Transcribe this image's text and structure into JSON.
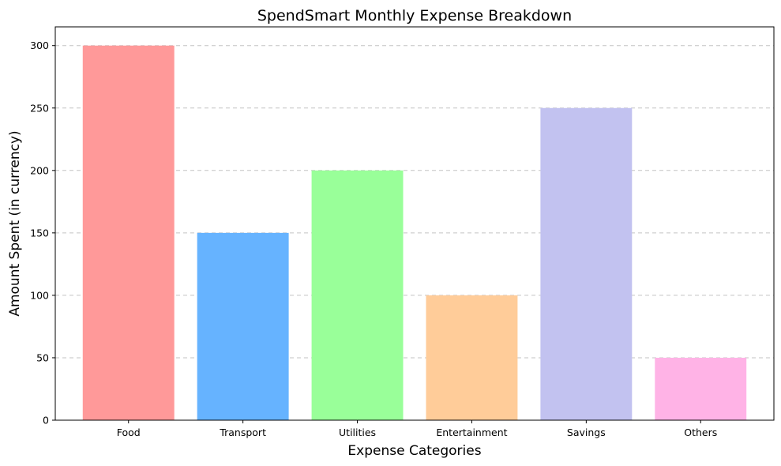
{
  "chart_data": {
    "type": "bar",
    "title": "SpendSmart Monthly Expense Breakdown",
    "xlabel": "Expense Categories",
    "ylabel": "Amount Spent (in currency)",
    "categories": [
      "Food",
      "Transport",
      "Utilities",
      "Entertainment",
      "Savings",
      "Others"
    ],
    "values": [
      300,
      150,
      200,
      100,
      250,
      50
    ],
    "colors": [
      "#ff9999",
      "#66b3ff",
      "#99ff99",
      "#ffcc99",
      "#c2c2f0",
      "#ffb3e6"
    ],
    "ylim": [
      0,
      315
    ],
    "yticks": [
      0,
      50,
      100,
      150,
      200,
      250,
      300
    ],
    "grid": "y-dashed",
    "legend": "none"
  }
}
